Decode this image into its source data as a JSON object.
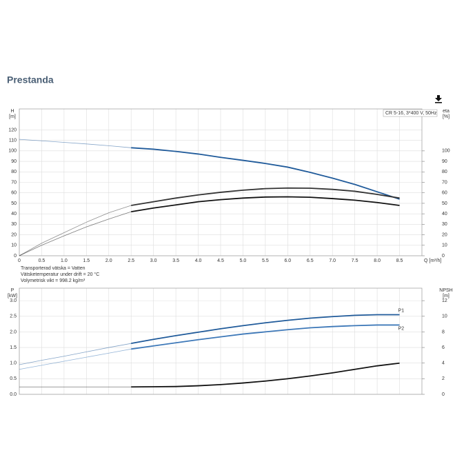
{
  "title": "Prestanda",
  "notes": [
    "Transporterad vätska = Vatten",
    "Vätsketemperatur under drift = 20 °C",
    "Volymetrisk vikt = 998.2 kg/m³"
  ],
  "chart_data": [
    {
      "type": "line",
      "annotation": "CR 5-16, 3*400 V, 50Hz",
      "y_label": "H",
      "y_unit": "[m]",
      "y2_label": "eta",
      "y2_unit": "[%]",
      "x_label": "Q [m³/h]",
      "xlim": [
        0,
        9
      ],
      "ylim": [
        0,
        140
      ],
      "y2lim": [
        0,
        140
      ],
      "xticks": [
        0,
        0.5,
        {
          "value": 1,
          "label": "1.0"
        },
        1.5,
        {
          "value": 2,
          "label": "2.0"
        },
        2.5,
        {
          "value": 3,
          "label": "3.0"
        },
        3.5,
        {
          "value": 4,
          "label": "4.0"
        },
        4.5,
        {
          "value": 5,
          "label": "5.0"
        },
        5.5,
        {
          "value": 6,
          "label": "6.0"
        },
        6.5,
        {
          "value": 7,
          "label": "7.0"
        },
        7.5,
        {
          "value": 8,
          "label": "8.0"
        },
        8.5
      ],
      "xtick_labels": true,
      "yticks": [
        0,
        10,
        20,
        30,
        40,
        50,
        60,
        70,
        80,
        90,
        100,
        110,
        120
      ],
      "y2ticks": [
        0,
        10,
        20,
        30,
        40,
        50,
        60,
        70,
        80,
        90,
        100
      ],
      "grid": true,
      "thin_below_x": 2.5,
      "x": [
        0,
        0.5,
        1,
        1.5,
        2,
        2.5,
        3,
        3.5,
        4,
        4.5,
        5,
        5.5,
        6,
        6.5,
        7,
        7.5,
        8,
        8.5
      ],
      "series": [
        {
          "color": "#1f5a9a",
          "axis": "y",
          "values": [
            111,
            109.6,
            108.1,
            106.6,
            104.9,
            103,
            101.6,
            99.5,
            97,
            93.8,
            91,
            88,
            84.5,
            79.5,
            74,
            68,
            61,
            54
          ]
        },
        {
          "color": "#333333",
          "axis": "y2",
          "values": [
            0,
            12,
            22,
            32,
            41,
            48,
            51.5,
            55,
            58,
            60.5,
            62.5,
            64,
            64.6,
            64.4,
            63.3,
            61.5,
            58.5,
            55
          ]
        },
        {
          "color": "#111111",
          "axis": "y2",
          "values": [
            0,
            10,
            19,
            27.5,
            35,
            42,
            45.5,
            48.5,
            51.5,
            53.5,
            55,
            56,
            56.2,
            55.8,
            54.5,
            53,
            50.8,
            48
          ]
        }
      ]
    },
    {
      "type": "line",
      "y_label": "P",
      "y_unit": "[kW]",
      "y2_label": "NPSH",
      "y2_unit": "[m]",
      "xlim": [
        0,
        9
      ],
      "ylim": [
        0,
        3.4
      ],
      "y2lim": [
        0,
        13.6
      ],
      "xticks": [
        0,
        0.5,
        1,
        1.5,
        2,
        2.5,
        3,
        3.5,
        4,
        4.5,
        5,
        5.5,
        6,
        6.5,
        7,
        7.5,
        8,
        8.5
      ],
      "xtick_labels": false,
      "yticks": [
        {
          "value": 0,
          "label": "0.0"
        },
        0.5,
        {
          "value": 1,
          "label": "1.0"
        },
        1.5,
        {
          "value": 2,
          "label": "2.0"
        },
        2.5,
        {
          "value": 3,
          "label": "3.0"
        }
      ],
      "y2ticks": [
        0,
        2,
        4,
        6,
        8,
        10,
        12
      ],
      "grid": true,
      "thin_below_x": 2.5,
      "x": [
        0,
        0.5,
        1,
        1.5,
        2,
        2.5,
        3,
        3.5,
        4,
        4.5,
        5,
        5.5,
        6,
        6.5,
        7,
        7.5,
        8,
        8.5
      ],
      "series": [
        {
          "name": "P1",
          "label_side": "above",
          "color": "#1f5a9a",
          "axis": "y",
          "values": [
            0.95,
            1.09,
            1.22,
            1.36,
            1.5,
            1.63,
            1.76,
            1.88,
            1.99,
            2.1,
            2.2,
            2.29,
            2.37,
            2.44,
            2.49,
            2.53,
            2.55,
            2.55
          ]
        },
        {
          "name": "P2",
          "label_side": "below",
          "color": "#3d78b8",
          "axis": "y",
          "values": [
            0.8,
            0.93,
            1.06,
            1.19,
            1.32,
            1.45,
            1.55,
            1.65,
            1.75,
            1.84,
            1.93,
            2.0,
            2.07,
            2.13,
            2.17,
            2.2,
            2.22,
            2.22
          ]
        },
        {
          "color": "#111111",
          "axis": "y2",
          "values": [
            0.95,
            0.95,
            0.95,
            0.95,
            0.95,
            0.95,
            0.97,
            1.0,
            1.1,
            1.25,
            1.45,
            1.7,
            2.0,
            2.35,
            2.75,
            3.2,
            3.65,
            4.0
          ]
        }
      ]
    }
  ]
}
